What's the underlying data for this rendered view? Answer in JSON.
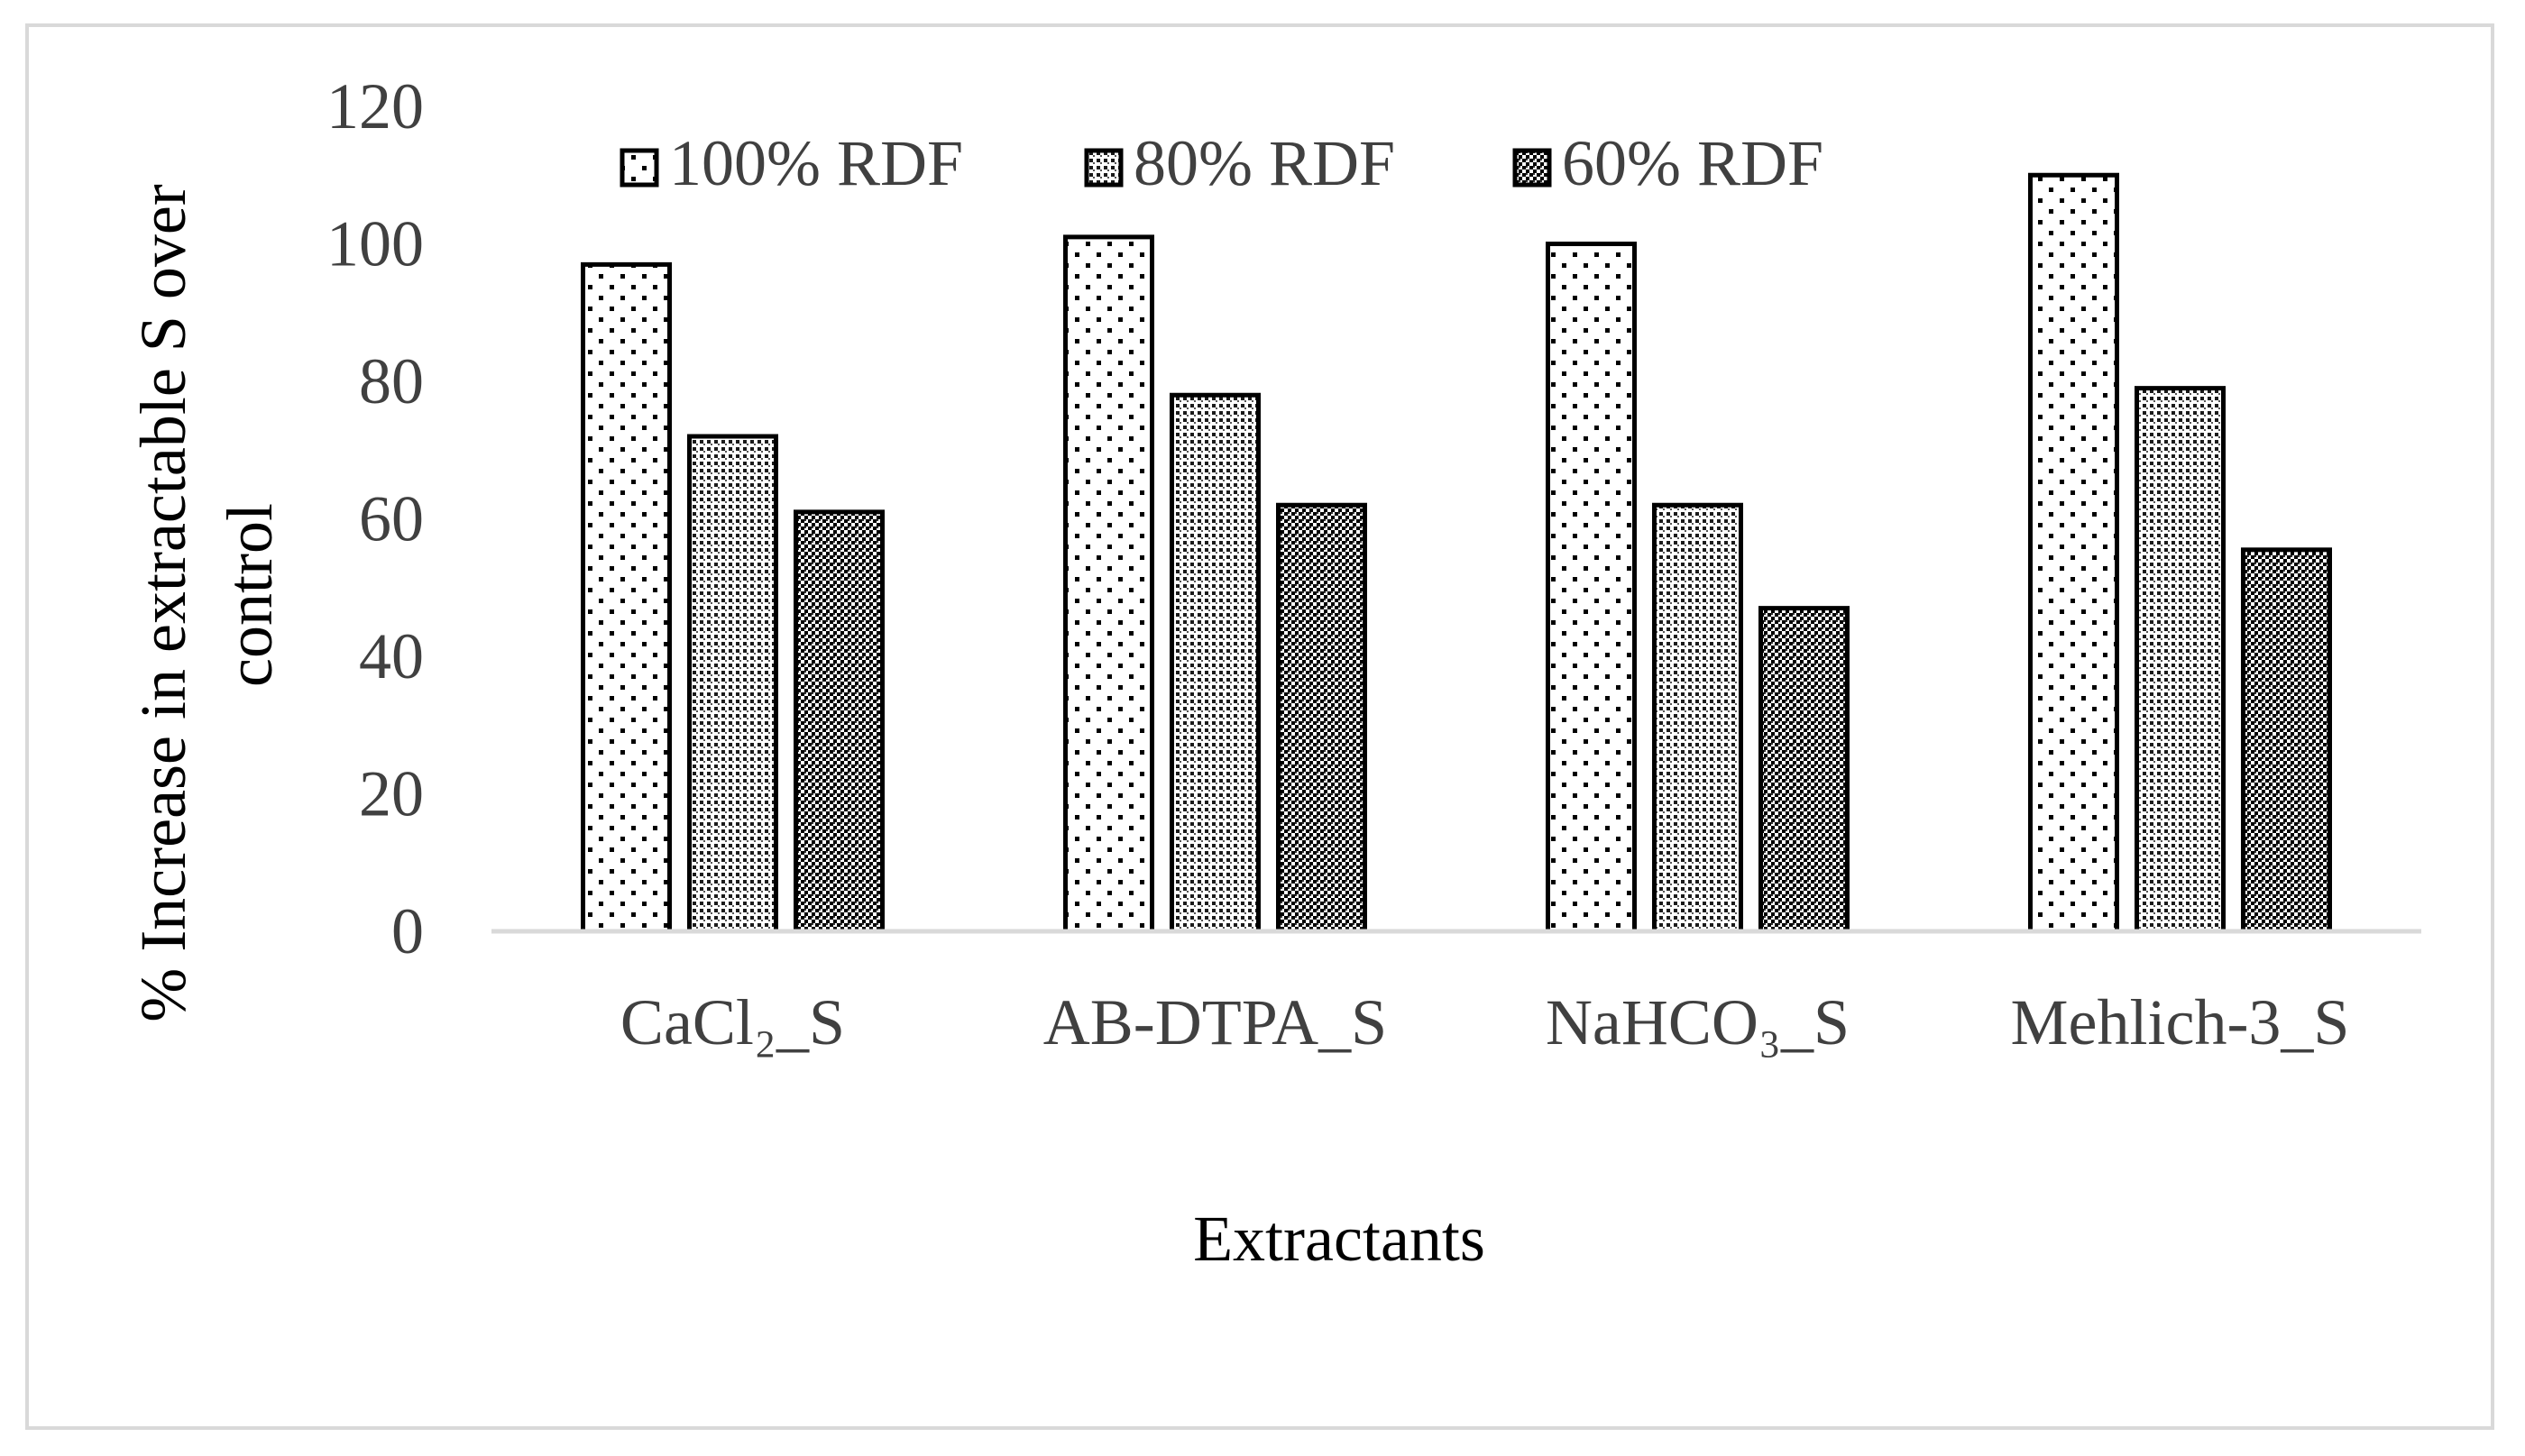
{
  "chart_data": {
    "type": "bar",
    "title": "",
    "xlabel": "Extractants",
    "ylabel": "% Increase in extractable S over control",
    "ylabel_lines": [
      "% Increase in extractable S over",
      "control"
    ],
    "categories": [
      "CaCl₂_S",
      "AB-DTPA_S",
      "NaHCO₃_S",
      "Mehlich-3_S"
    ],
    "ylim": [
      0,
      120
    ],
    "yticks": [
      0,
      20,
      40,
      60,
      80,
      100,
      120
    ],
    "grid": false,
    "legend_position": "top",
    "series": [
      {
        "name": "100% RDF",
        "pattern": "sparse-dots",
        "values": [
          97,
          101,
          100,
          110
        ]
      },
      {
        "name": "80% RDF",
        "pattern": "fine-grid",
        "values": [
          72,
          78,
          62,
          79
        ]
      },
      {
        "name": "60% RDF",
        "pattern": "dense-check",
        "values": [
          61,
          62,
          47,
          55.5
        ]
      }
    ]
  },
  "colors": {
    "bar_stroke": "#000000",
    "axis_line": "#d9d9d9",
    "label_text": "#404040",
    "background": "#ffffff"
  }
}
